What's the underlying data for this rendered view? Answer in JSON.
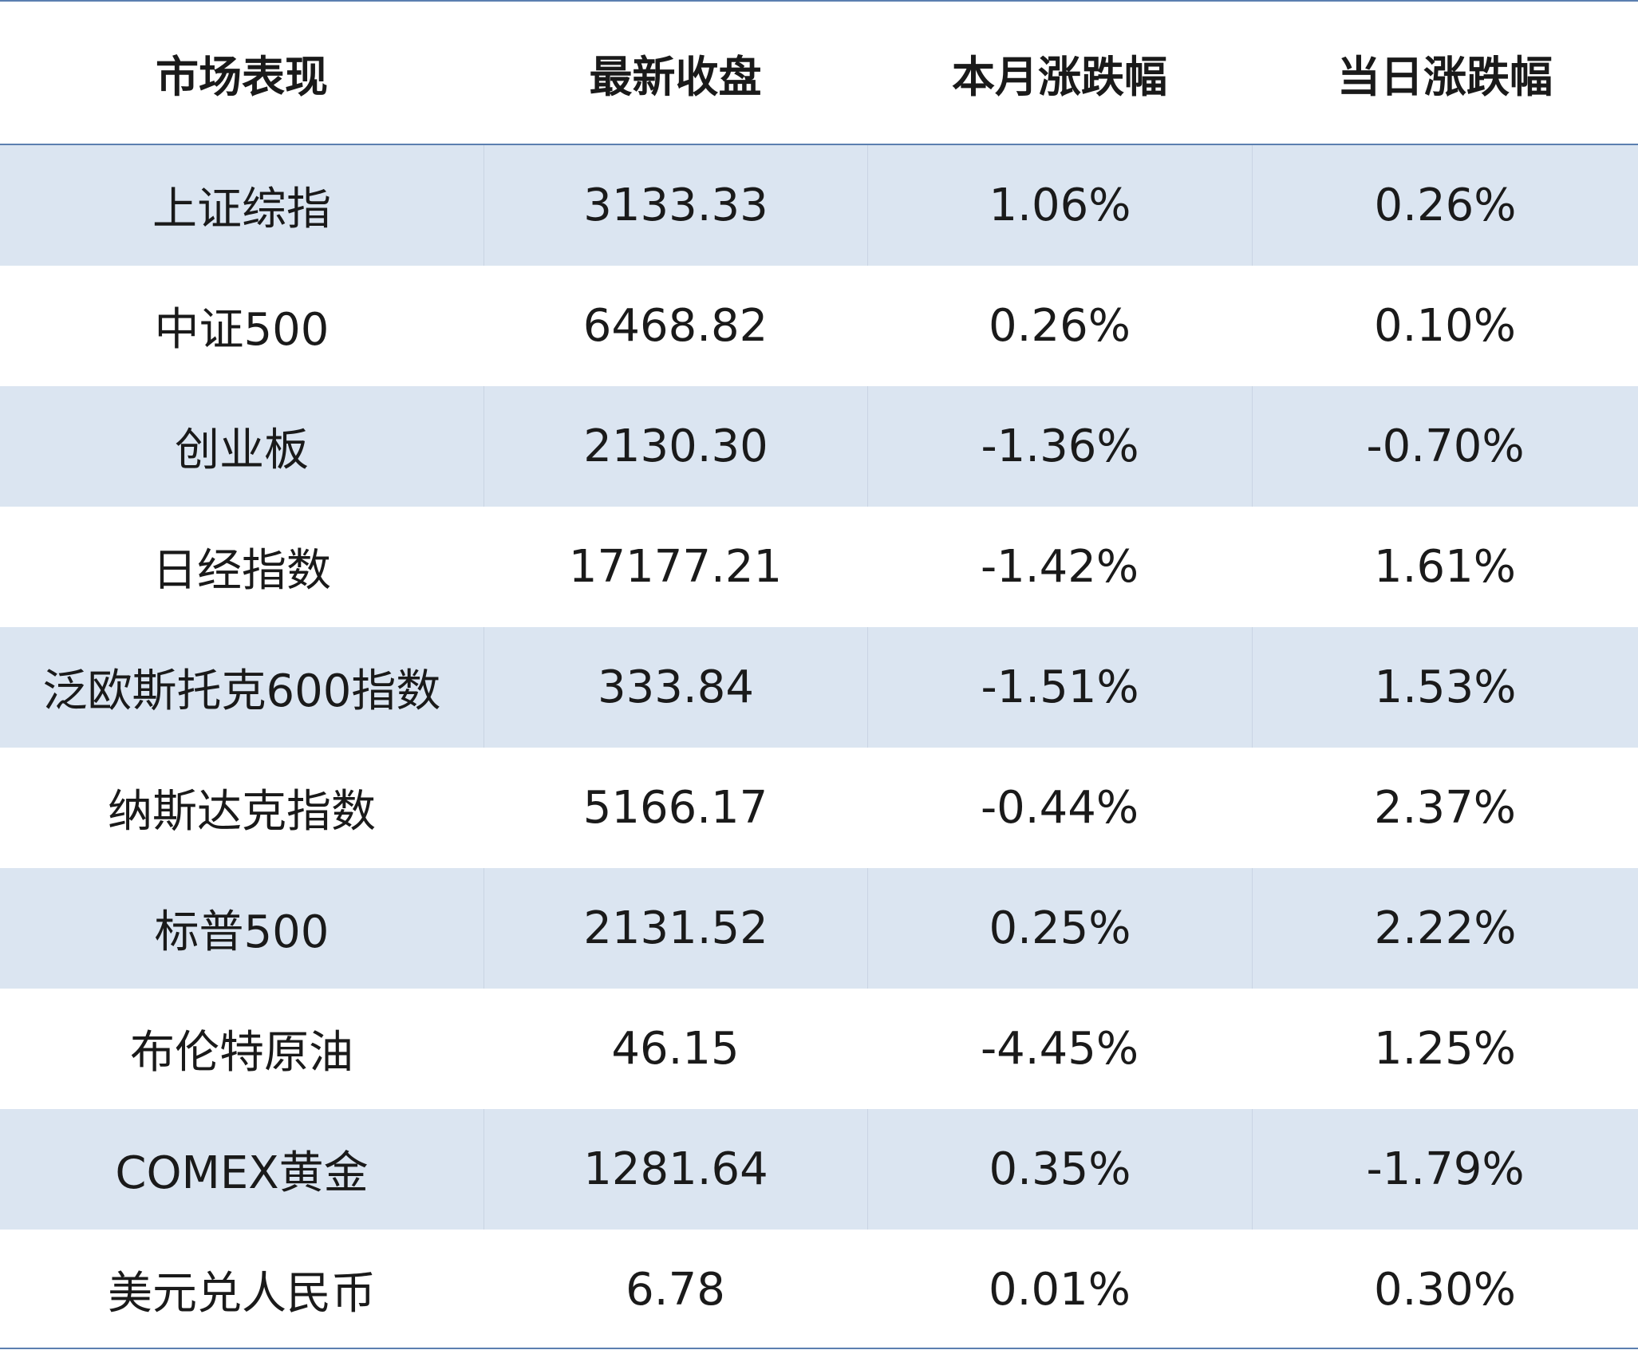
{
  "table": {
    "header": [
      "市场表现",
      "最新收盘",
      "本月涨跌幅",
      "当日涨跌幅"
    ],
    "rows": [
      [
        "上证综指",
        "3133.33",
        "1.06%",
        "0.26%"
      ],
      [
        "中证500",
        "6468.82",
        "0.26%",
        "0.10%"
      ],
      [
        "创业板",
        "2130.30",
        "-1.36%",
        "-0.70%"
      ],
      [
        "日经指数",
        "17177.21",
        "-1.42%",
        "1.61%"
      ],
      [
        "泛欧斯托克600指数",
        "333.84",
        "-1.51%",
        "1.53%"
      ],
      [
        "纳斯达克指数",
        "5166.17",
        "-0.44%",
        "2.37%"
      ],
      [
        "标普500",
        "2131.52",
        "0.25%",
        "2.22%"
      ],
      [
        "布伦特原油",
        "46.15",
        "-4.45%",
        "1.25%"
      ],
      [
        "COMEX黄金",
        "1281.64",
        "0.35%",
        "-1.79%"
      ],
      [
        "美元兑人民币",
        "6.78",
        "0.01%",
        "0.30%"
      ]
    ]
  }
}
